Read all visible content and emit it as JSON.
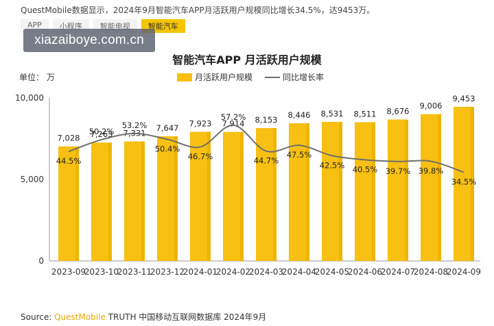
{
  "header": {
    "text": "QuestMobile数据显示，2024年9月智能汽车APP月活跃用户规模同比增长34.5%，达9453万。"
  },
  "tabs": [
    {
      "label": "APP",
      "active": false
    },
    {
      "label": "小程序",
      "active": false
    },
    {
      "label": "智能电视",
      "active": false
    },
    {
      "label": "智能汽车",
      "active": true
    }
  ],
  "watermark": "xiazaiboye.com.cn",
  "unit_label": "单位：  万",
  "source": {
    "prefix": "Source:",
    "brand": "QuestMobile",
    "rest": "TRUTH 中国移动互联网数据库 2024年9月"
  },
  "colors": {
    "bar": "#f7c012",
    "bar_shade": "#f0b400",
    "line": "#6e6e6e",
    "accent": "#f6c400"
  },
  "chart_data": {
    "type": "bar",
    "title": "智能汽车APP 月活跃用户规模",
    "categories": [
      "2023-09",
      "2023-10",
      "2023-11",
      "2023-12",
      "2024-01",
      "2024-02",
      "2024-03",
      "2024-04",
      "2024-05",
      "2024-06",
      "2024-07",
      "2024-08",
      "2024-09"
    ],
    "series": [
      {
        "name": "月活跃用户规模",
        "type": "bar",
        "values": [
          7028,
          7263,
          7331,
          7647,
          7923,
          7914,
          8153,
          8446,
          8531,
          8511,
          8676,
          9006,
          9453
        ],
        "labels": [
          "7,028",
          "7,263",
          "7,331",
          "7,647",
          "7,923",
          "7,914",
          "8,153",
          "8,446",
          "8,531",
          "8,511",
          "8,676",
          "9,006",
          "9,453"
        ]
      },
      {
        "name": "同比增长率",
        "type": "line",
        "values": [
          44.5,
          50.2,
          53.2,
          50.4,
          46.7,
          57.2,
          44.7,
          47.5,
          42.5,
          40.5,
          39.7,
          39.8,
          34.5
        ],
        "labels": [
          "44.5%",
          "50.2%",
          "53.2%",
          "50.4%",
          "46.7%",
          "57.2%",
          "44.7%",
          "47.5%",
          "42.5%",
          "40.5%",
          "39.7%",
          "39.8%",
          "34.5%"
        ]
      }
    ],
    "yticks": [
      "10,000",
      "5,000",
      "0"
    ],
    "ytick_values": [
      10000,
      5000,
      0
    ],
    "ylim": [
      0,
      10000
    ],
    "line_ylim": [
      0,
      70
    ],
    "legend": "top-center",
    "grid": false
  }
}
